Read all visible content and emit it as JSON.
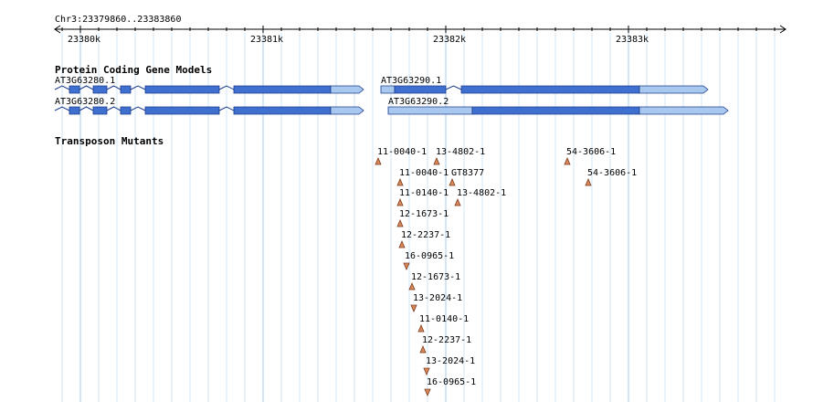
{
  "header": {
    "range": "Chr3:23379860..23383860"
  },
  "ruler": {
    "ticks": [
      "23380k",
      "23381k",
      "23382k",
      "23383k"
    ]
  },
  "tracks": [
    {
      "title": "Protein Coding Gene Models",
      "features": [
        "AT3G63280.1",
        "AT3G63280.2",
        "AT3G63290.1",
        "AT3G63290.2"
      ]
    },
    {
      "title": "Transposon Mutants",
      "features": [
        "11-0040-1",
        "13-4802-1",
        "54-3606-1",
        "11-0040-1",
        "GT8377",
        "54-3606-1",
        "11-0140-1",
        "13-4802-1",
        "12-1673-1",
        "12-2237-1",
        "16-0965-1",
        "12-1673-1",
        "13-2024-1",
        "11-0140-1",
        "12-2237-1",
        "13-2024-1",
        "16-0965-1"
      ]
    }
  ]
}
